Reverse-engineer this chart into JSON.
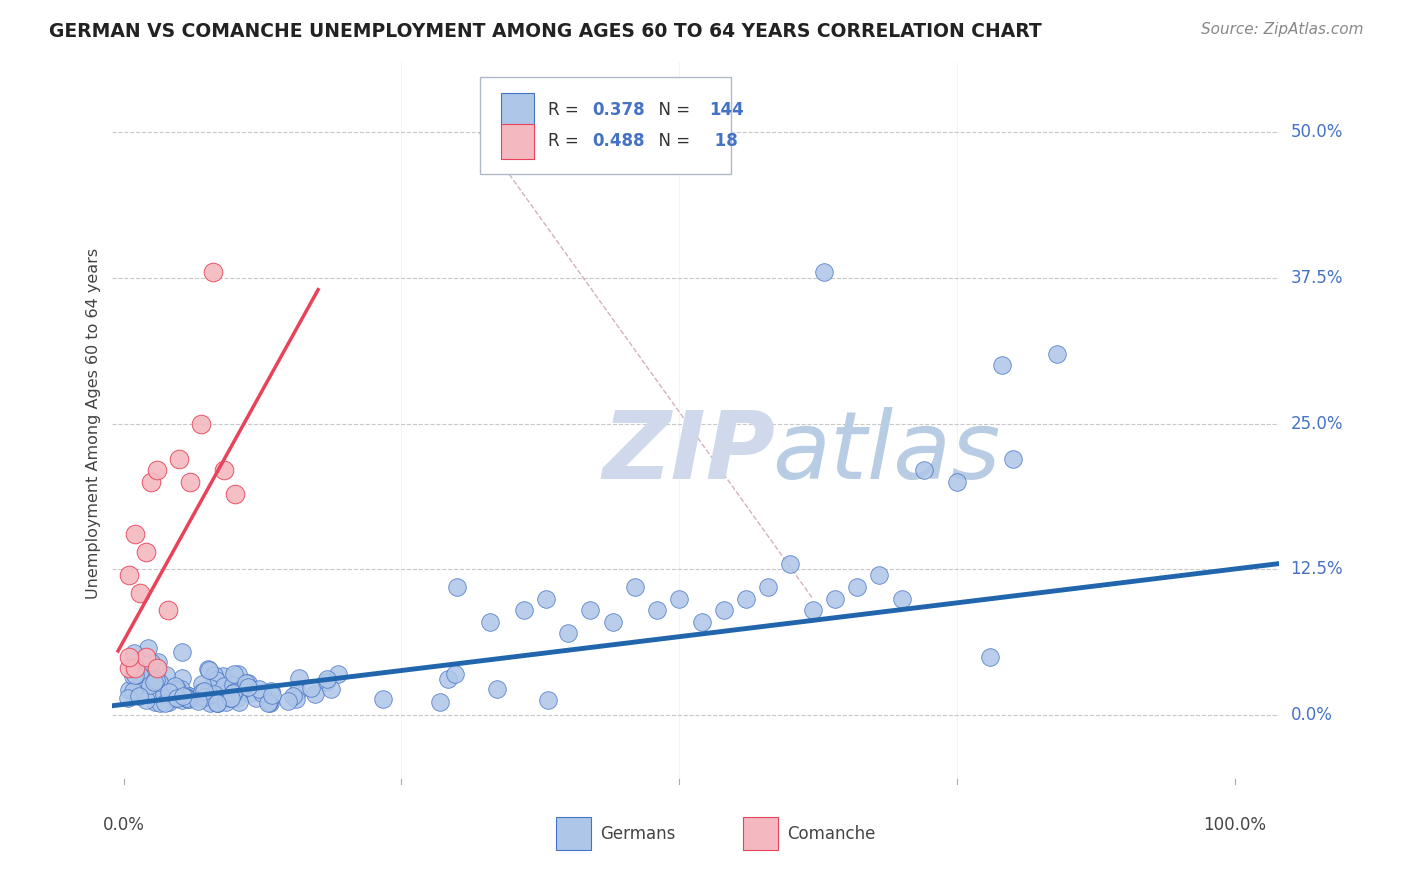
{
  "title": "GERMAN VS COMANCHE UNEMPLOYMENT AMONG AGES 60 TO 64 YEARS CORRELATION CHART",
  "source": "Source: ZipAtlas.com",
  "ylabel": "Unemployment Among Ages 60 to 64 years",
  "ytick_labels": [
    "0.0%",
    "12.5%",
    "25.0%",
    "37.5%",
    "50.0%"
  ],
  "ytick_vals": [
    0.0,
    0.125,
    0.25,
    0.375,
    0.5
  ],
  "xtick_labels": [
    "0.0%",
    "100.0%"
  ],
  "xtick_vals": [
    0.0,
    1.0
  ],
  "german_R": 0.378,
  "german_N": 144,
  "comanche_R": 0.488,
  "comanche_N": 18,
  "german_color": "#aec6e8",
  "german_edge_color": "#4472c4",
  "german_line_color": "#2166ac",
  "comanche_color": "#f4b8c0",
  "comanche_edge_color": "#e8435a",
  "comanche_line_color": "#e8435a",
  "background_color": "#ffffff",
  "grid_color": "#c8c8c8",
  "title_color": "#222222",
  "source_color": "#888888",
  "label_color": "#4472c4",
  "ref_line_color": "#c8a0a8",
  "watermark_zip_color": "#d0d8e8",
  "watermark_atlas_color": "#b0c8e0",
  "xlim": [
    -0.01,
    1.04
  ],
  "ylim": [
    -0.06,
    0.56
  ],
  "german_line_x0": -0.01,
  "german_line_x1": 1.04,
  "german_line_y0": 0.008,
  "german_line_y1": 0.13,
  "comanche_line_x0": -0.005,
  "comanche_line_x1": 0.175,
  "comanche_line_y0": 0.055,
  "comanche_line_y1": 0.365,
  "ref_line_x0": 0.32,
  "ref_line_x1": 0.62,
  "ref_line_y0": 0.5,
  "ref_line_y1": 0.1
}
